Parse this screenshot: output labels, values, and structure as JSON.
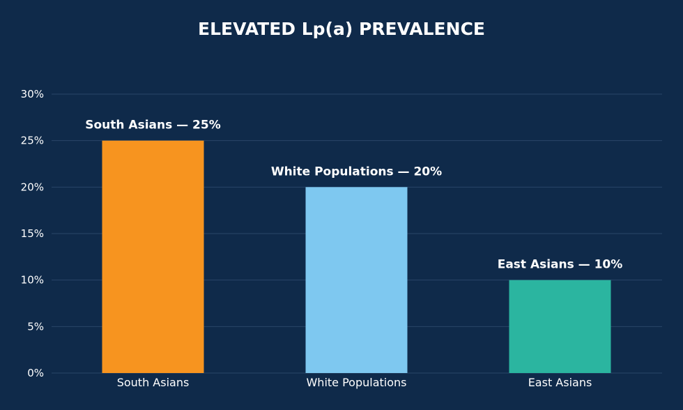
{
  "chart_data": {
    "type": "bar",
    "title": "ELEVATED Lp(a) PREVALENCE",
    "categories": [
      "South Asians",
      "White Populations",
      "East Asians"
    ],
    "values": [
      25,
      20,
      10
    ],
    "data_labels": [
      "South Asians — 25%",
      "White Populations — 20%",
      "East Asians — 10%"
    ],
    "colors": [
      "#f7941f",
      "#7ec8f0",
      "#2bb5a0"
    ],
    "yticks": [
      0,
      5,
      10,
      15,
      20,
      25,
      30
    ],
    "ytick_labels": [
      "0%",
      "5%",
      "10%",
      "15%",
      "20%",
      "25%",
      "30%"
    ],
    "ylim": [
      0,
      30
    ],
    "grid": true,
    "background": "#0f2a4a",
    "gridline_color": "#2a4668",
    "text_color": "#ffffff"
  }
}
